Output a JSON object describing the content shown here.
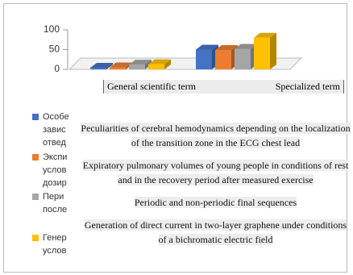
{
  "chart_data": {
    "type": "bar3d",
    "categories": [
      "General scientific term",
      "Specialized term"
    ],
    "series": [
      {
        "name": "Особе\nзавис\nотвед",
        "color": "#4472c4",
        "values": [
          4,
          50
        ]
      },
      {
        "name": "Экспи\nуслов\nдозир",
        "color": "#ed7d31",
        "values": [
          5,
          49
        ]
      },
      {
        "name": "Пери\nпосле",
        "color": "#a5a5a5",
        "values": [
          12,
          52
        ]
      },
      {
        "name": "Генер\nуслов",
        "color": "#ffc000",
        "values": [
          13,
          80
        ]
      }
    ],
    "ylim": [
      0,
      100
    ],
    "yticks": [
      0,
      50,
      100
    ],
    "annotations": [
      "Peculiarities of cerebral hemodynamics depending on the localization of the transition zone in the ECG chest lead",
      "Expiratory pulmonary volumes of young people in conditions of rest and in the recovery period after measured exercise",
      "Periodic and non-periodic final sequences",
      "Generation of direct current in two-layer graphene under conditions of a bichromatic electric field"
    ]
  }
}
